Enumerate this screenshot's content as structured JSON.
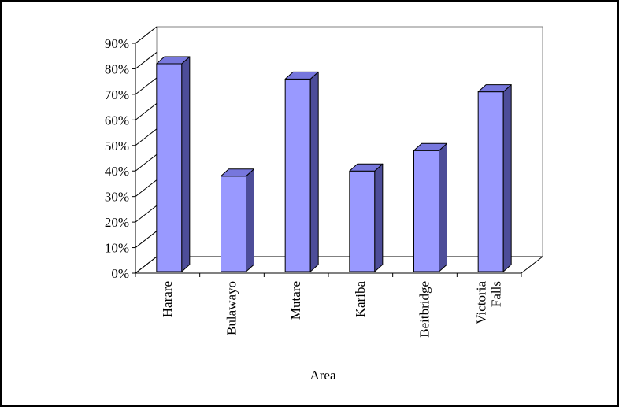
{
  "chart_data": {
    "type": "bar",
    "title": "",
    "xlabel": "Area",
    "ylabel": "",
    "categories": [
      [
        "Harare"
      ],
      [
        "Bulawayo"
      ],
      [
        "Mutare"
      ],
      [
        "Kariba"
      ],
      [
        "Beitbridge"
      ],
      [
        "Victoria",
        "Falls"
      ]
    ],
    "values": [
      0.82,
      0.38,
      0.76,
      0.4,
      0.48,
      0.71
    ],
    "ylim": [
      0,
      0.9
    ],
    "yticks": [
      0,
      0.1,
      0.2,
      0.3,
      0.4,
      0.5,
      0.6,
      0.7,
      0.8,
      0.9
    ],
    "ytick_labels": [
      "0%",
      "10%",
      "20%",
      "30%",
      "40%",
      "50%",
      "60%",
      "70%",
      "80%",
      "90%"
    ],
    "grid": false,
    "legend": "none",
    "style": "3d-column",
    "colors": {
      "bar_front": "#9999ff",
      "bar_side": "#4d4d99",
      "bar_top": "#7777dd",
      "outline": "#000000",
      "wall": "#ffffff",
      "wall_border": "#808080",
      "floor": "#ffffff"
    }
  }
}
